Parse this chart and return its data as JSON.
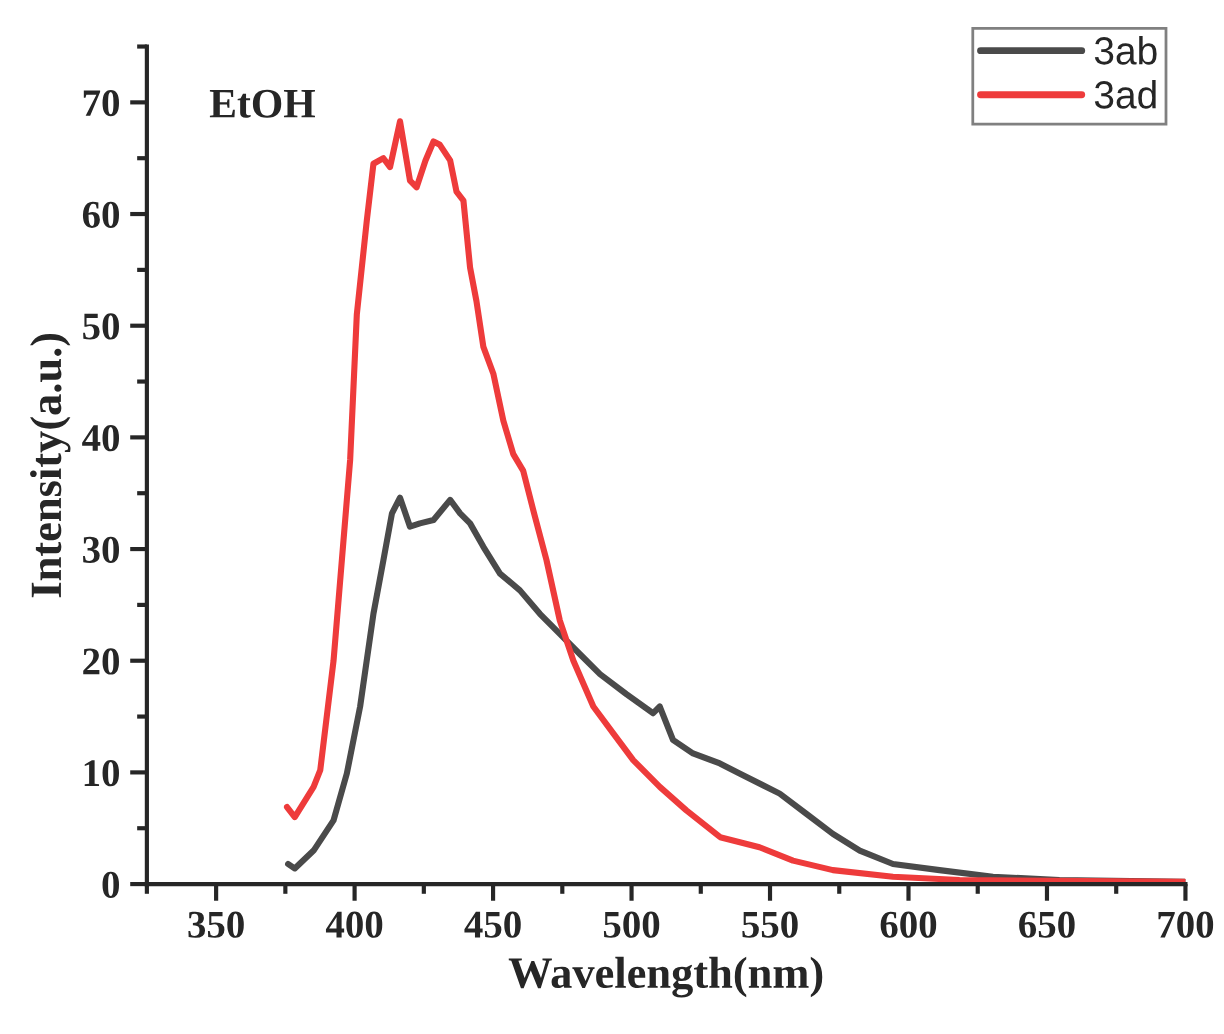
{
  "chart_data": {
    "type": "line",
    "xlabel": "Wavelength(nm)",
    "ylabel": "Intensity(a.u.)",
    "annotations": [
      "EtOH"
    ],
    "xlim": [
      325,
      700
    ],
    "xticks": [
      350,
      400,
      450,
      500,
      550,
      600,
      650,
      700
    ],
    "ylim": [
      0,
      75
    ],
    "yticks": [
      0,
      10,
      20,
      30,
      40,
      50,
      60,
      70
    ],
    "grid": false,
    "legend": "top right",
    "line_style": "solid",
    "marker": "none",
    "series": [
      {
        "name": "3ab",
        "color": "#4a4a4a",
        "x": [
          376,
          378.4,
          385.2,
          392.4,
          397.2,
          402,
          406.8,
          410.4,
          413.5,
          416.4,
          420,
          423.6,
          428.5,
          434.5,
          438.1,
          441.7,
          446.5,
          452.5,
          459.7,
          466.9,
          474.1,
          481.3,
          488.6,
          498.2,
          507.8,
          510.2,
          515,
          522.2,
          531.9,
          539,
          553.5,
          563.1,
          572.7,
          582.4,
          594.4,
          611.2,
          630.5,
          654.5,
          699.7
        ],
        "values": [
          1.8,
          1.4,
          3.0,
          5.7,
          9.9,
          15.9,
          24.2,
          29,
          33.2,
          34.6,
          32,
          32.3,
          32.6,
          34.4,
          33.2,
          32.3,
          30.2,
          27.8,
          26.3,
          24.2,
          22.4,
          20.6,
          18.8,
          17,
          15.3,
          15.9,
          12.9,
          11.7,
          10.8,
          9.9,
          8.1,
          6.3,
          4.5,
          3.0,
          1.8,
          1.25,
          0.66,
          0.36,
          0.2
        ]
      },
      {
        "name": "3ad",
        "color": "#ee3b3b",
        "x": [
          375.6,
          378.4,
          385.2,
          387.6,
          392.4,
          398.4,
          400.8,
          404.4,
          406.8,
          410.4,
          412.8,
          416.4,
          420,
          422.4,
          425.6,
          428.5,
          430.8,
          434.5,
          436.8,
          439.3,
          441.7,
          444,
          446.5,
          450.1,
          453.7,
          457.3,
          460.9,
          464.8,
          469.3,
          474.1,
          479,
          486.2,
          493.4,
          500.6,
          510.2,
          519.8,
          532,
          546.2,
          558.3,
          572.7,
          594.4,
          618.4,
          699.7
        ],
        "values": [
          6.9,
          6.0,
          8.7,
          10.2,
          20,
          38,
          51,
          59.4,
          64.5,
          65,
          64.2,
          68.3,
          63,
          62.4,
          64.8,
          66.5,
          66.2,
          64.8,
          62,
          61.2,
          55.2,
          52.2,
          48.1,
          45.7,
          41.5,
          38.5,
          37,
          33.2,
          29,
          23.6,
          20,
          15.9,
          13.5,
          11.1,
          8.7,
          6.6,
          4.2,
          3.3,
          2.1,
          1.25,
          0.66,
          0.36,
          0.2
        ]
      }
    ]
  }
}
